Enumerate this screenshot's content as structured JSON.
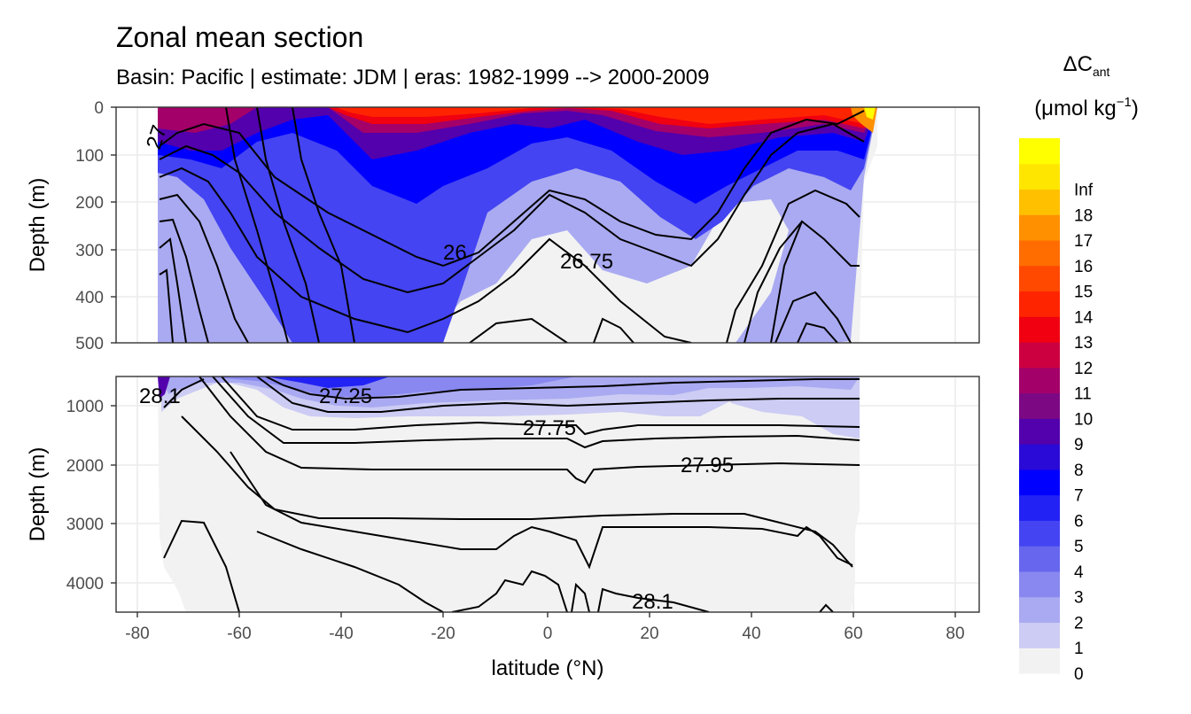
{
  "chart_data": {
    "type": "contour",
    "title": "Zonal mean section",
    "subtitle": "Basin: Pacific | estimate: JDM  | eras: 1982-1999 --> 2000-2009",
    "xlabel": "latitude (°N)",
    "xlim": [
      -85,
      85
    ],
    "xticks": [
      -80,
      -60,
      -40,
      -20,
      0,
      20,
      40,
      60,
      80
    ],
    "panels": [
      {
        "name": "upper",
        "ylabel": "Depth (m)",
        "ylim": [
          0,
          500
        ],
        "yticks": [
          0,
          100,
          200,
          300,
          400,
          500
        ],
        "isopycnal_labels": [
          {
            "text": "26",
            "lat": -18,
            "depth": 305
          },
          {
            "text": "26.75",
            "lat": 3,
            "depth": 325
          },
          {
            "text": "27",
            "lat": -75,
            "depth": 50
          }
        ]
      },
      {
        "name": "lower",
        "ylabel": "Depth (m)",
        "ylim": [
          500,
          4500
        ],
        "yticks": [
          1000,
          2000,
          3000,
          4000
        ],
        "isopycnal_labels": [
          {
            "text": "28.1",
            "lat": -77,
            "depth": 870
          },
          {
            "text": "27.25",
            "lat": -40,
            "depth": 870
          },
          {
            "text": "27.75",
            "lat": 1,
            "depth": 1450
          },
          {
            "text": "27.95",
            "lat": 30,
            "depth": 2000
          },
          {
            "text": "28.1",
            "lat": 21,
            "depth": 4300
          }
        ]
      }
    ],
    "legend": {
      "title_main": "ΔC",
      "title_sub": "ant",
      "title_units": "(μmol kg",
      "title_units_sup": "−1",
      "title_units_end": ")",
      "levels": [
        "0",
        "1",
        "2",
        "3",
        "4",
        "5",
        "6",
        "7",
        "8",
        "9",
        "10",
        "11",
        "12",
        "13",
        "14",
        "15",
        "16",
        "17",
        "18",
        "Inf"
      ],
      "colors": [
        "#f2f2f2",
        "#ccccf4",
        "#aaaaf2",
        "#8888f0",
        "#6666ee",
        "#4444f2",
        "#2222f4",
        "#0000ff",
        "#2a0ad6",
        "#5300ad",
        "#7c0884",
        "#a3006a",
        "#cc0040",
        "#f00010",
        "#ff2400",
        "#ff4800",
        "#ff6c00",
        "#ff9000",
        "#ffc000",
        "#ffe600",
        "#ffff00"
      ]
    }
  }
}
